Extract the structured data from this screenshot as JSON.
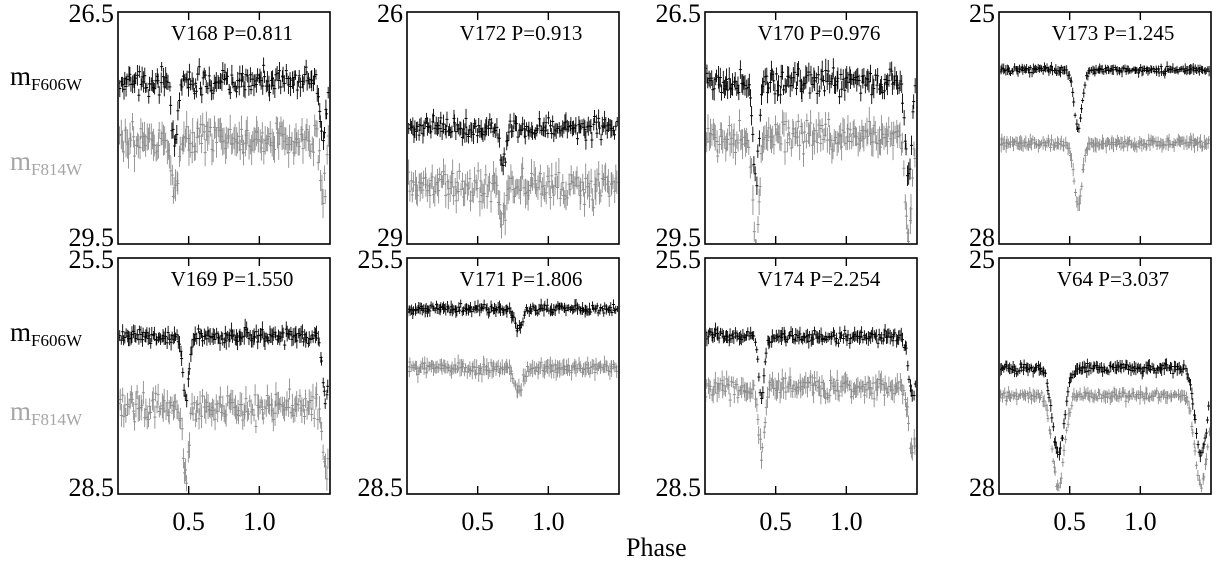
{
  "figure": {
    "xlabel": "Phase",
    "row_labels": {
      "top_main": "m",
      "top_sub": "F606W",
      "bottom_main": "m",
      "bottom_sub": "F814W"
    },
    "colors": {
      "F606W": "#000000",
      "F814W": "#8c8c8c",
      "label_F814W": "#a6a6a6"
    }
  },
  "chart_data": [
    {
      "type": "scatter",
      "title": "V168   P=0.811",
      "star": "V168",
      "period": "P=0.811",
      "ylim": [
        26.5,
        29.5
      ],
      "ytick_labels": [
        "26.5",
        "29.5"
      ],
      "xlim": [
        0,
        1.5
      ],
      "xtick_labels": [
        "0.5",
        "1.0"
      ],
      "xticks": [
        0.5,
        1.0
      ],
      "series": [
        {
          "name": "mF606W",
          "base": 27.4,
          "scatter": 0.14,
          "err": 0.1
        },
        {
          "name": "mF814W",
          "base": 28.15,
          "scatter": 0.2,
          "err": 0.15
        }
      ],
      "eclipses": [
        {
          "phase": 0.4,
          "width": 0.03,
          "depth": 0.7
        },
        {
          "phase": 1.45,
          "width": 0.03,
          "depth": 0.7
        }
      ]
    },
    {
      "type": "scatter",
      "title": "V172   P=0.913",
      "star": "V172",
      "period": "P=0.913",
      "ylim": [
        26,
        29
      ],
      "ytick_labels": [
        "26",
        "29"
      ],
      "xlim": [
        0,
        1.5
      ],
      "xtick_labels": [
        "0.5",
        "1.0"
      ],
      "xticks": [
        0.5,
        1.0
      ],
      "series": [
        {
          "name": "mF606W",
          "base": 27.5,
          "scatter": 0.12,
          "err": 0.09
        },
        {
          "name": "mF814W",
          "base": 28.25,
          "scatter": 0.2,
          "err": 0.14
        }
      ],
      "eclipses": [
        {
          "phase": 0.68,
          "width": 0.03,
          "depth": 0.5
        }
      ]
    },
    {
      "type": "scatter",
      "title": "V170   P=0.976",
      "star": "V170",
      "period": "P=0.976",
      "ylim": [
        26.5,
        29.5
      ],
      "ytick_labels": [
        "26.5",
        "29.5"
      ],
      "xlim": [
        0,
        1.5
      ],
      "xtick_labels": [
        "0.5",
        "1.0"
      ],
      "xticks": [
        0.5,
        1.0
      ],
      "series": [
        {
          "name": "mF606W",
          "base": 27.4,
          "scatter": 0.16,
          "err": 0.11
        },
        {
          "name": "mF814W",
          "base": 28.1,
          "scatter": 0.2,
          "err": 0.14
        }
      ],
      "eclipses": [
        {
          "phase": 0.36,
          "width": 0.03,
          "depth": 1.3
        },
        {
          "phase": 1.44,
          "width": 0.03,
          "depth": 1.3
        }
      ]
    },
    {
      "type": "scatter",
      "title": "V173   P=1.245",
      "star": "V173",
      "period": "P=1.245",
      "ylim": [
        25,
        28
      ],
      "ytick_labels": [
        "25",
        "28"
      ],
      "xlim": [
        0,
        1.5
      ],
      "xtick_labels": [
        "0.5",
        "1.0"
      ],
      "xticks": [
        0.5,
        1.0
      ],
      "series": [
        {
          "name": "mF606W",
          "base": 25.75,
          "scatter": 0.04,
          "err": 0.05
        },
        {
          "name": "mF814W",
          "base": 26.7,
          "scatter": 0.05,
          "err": 0.07
        }
      ],
      "eclipses": [
        {
          "phase": 0.56,
          "width": 0.04,
          "depth": 0.75
        }
      ]
    },
    {
      "type": "scatter",
      "title": "V169   P=1.550",
      "star": "V169",
      "period": "P=1.550",
      "ylim": [
        25.5,
        28.5
      ],
      "ytick_labels": [
        "25.5",
        "28.5"
      ],
      "xlim": [
        0,
        1.5
      ],
      "xtick_labels": [
        "0.5",
        "1.0"
      ],
      "xticks": [
        0.5,
        1.0
      ],
      "series": [
        {
          "name": "mF606W",
          "base": 26.5,
          "scatter": 0.08,
          "err": 0.08
        },
        {
          "name": "mF814W",
          "base": 27.4,
          "scatter": 0.17,
          "err": 0.12
        }
      ],
      "eclipses": [
        {
          "phase": 0.48,
          "width": 0.03,
          "depth": 0.8
        },
        {
          "phase": 1.47,
          "width": 0.03,
          "depth": 0.8
        }
      ]
    },
    {
      "type": "scatter",
      "title": "V171   P=1.806",
      "star": "V171",
      "period": "P=1.806",
      "ylim": [
        25.5,
        28.5
      ],
      "ytick_labels": [
        "25.5",
        "28.5"
      ],
      "xlim": [
        0,
        1.5
      ],
      "xtick_labels": [
        "0.5",
        "1.0"
      ],
      "xticks": [
        0.5,
        1.0
      ],
      "series": [
        {
          "name": "mF606W",
          "base": 26.15,
          "scatter": 0.05,
          "err": 0.06
        },
        {
          "name": "mF814W",
          "base": 26.9,
          "scatter": 0.07,
          "err": 0.08
        }
      ],
      "eclipses": [
        {
          "phase": 0.79,
          "width": 0.04,
          "depth": 0.25
        }
      ]
    },
    {
      "type": "scatter",
      "title": "V174   P=2.254",
      "star": "V174",
      "period": "P=2.254",
      "ylim": [
        25.5,
        28.5
      ],
      "ytick_labels": [
        "25.5",
        "28.5"
      ],
      "xlim": [
        0,
        1.5
      ],
      "xtick_labels": [
        "0.5",
        "1.0"
      ],
      "xticks": [
        0.5,
        1.0
      ],
      "series": [
        {
          "name": "mF606W",
          "base": 26.5,
          "scatter": 0.07,
          "err": 0.07
        },
        {
          "name": "mF814W",
          "base": 27.15,
          "scatter": 0.12,
          "err": 0.1
        }
      ],
      "eclipses": [
        {
          "phase": 0.4,
          "width": 0.03,
          "depth": 0.75
        },
        {
          "phase": 1.47,
          "width": 0.04,
          "depth": 0.75
        }
      ]
    },
    {
      "type": "scatter",
      "title": "V64   P=3.037",
      "star": "V64",
      "period": "P=3.037",
      "ylim": [
        25,
        28
      ],
      "ytick_labels": [
        "25",
        "28"
      ],
      "xlim": [
        0,
        1.5
      ],
      "xtick_labels": [
        "0.5",
        "1.0"
      ],
      "xticks": [
        0.5,
        1.0
      ],
      "series": [
        {
          "name": "mF606W",
          "base": 26.4,
          "scatter": 0.05,
          "err": 0.06
        },
        {
          "name": "mF814W",
          "base": 26.75,
          "scatter": 0.05,
          "err": 0.06
        }
      ],
      "eclipses": [
        {
          "phase": 0.42,
          "width": 0.06,
          "depth": 1.1
        },
        {
          "phase": 1.43,
          "width": 0.06,
          "depth": 1.1
        }
      ]
    }
  ]
}
